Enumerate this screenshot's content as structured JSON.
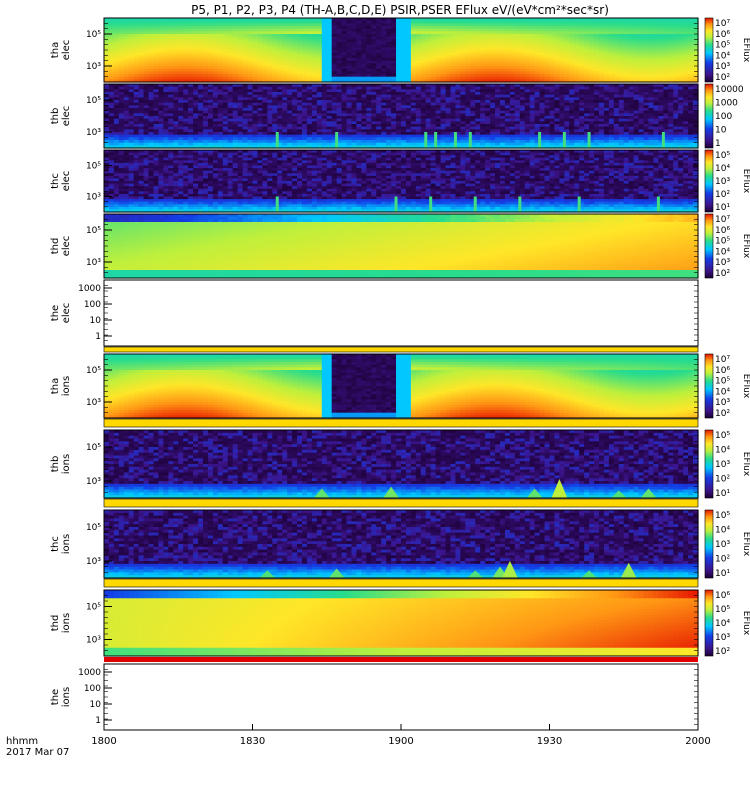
{
  "chart_data": {
    "type": "heatmap",
    "title": "P5, P1, P2, P3, P4 (TH-A,B,C,D,E) PSIR,PSER EFlux eV/(eV*cm²*sec*sr)",
    "xaxis": {
      "ticks": [
        "1800",
        "1830",
        "1900",
        "1930",
        "2000"
      ],
      "label_line1": "hhmm",
      "label_line2": "2017 Mar 07",
      "start_min": 0,
      "end_min": 120
    },
    "panels": [
      {
        "id": "tha-elec",
        "ylabel": [
          "tha",
          "elec"
        ],
        "kind": "spec",
        "pattern": "wave",
        "yticks": [
          "10⁵",
          "10³"
        ],
        "colorbar": {
          "label": "EFlux",
          "ticks": [
            "10⁷",
            "10⁶",
            "10⁵",
            "10⁴",
            "10³",
            "10²"
          ]
        }
      },
      {
        "id": "thb-elec",
        "ylabel": [
          "thb",
          "elec"
        ],
        "kind": "spec",
        "pattern": "noise",
        "yticks": [
          "10⁵",
          "10³"
        ],
        "colorbar": {
          "label": "",
          "ticks": [
            "10000",
            "1000",
            "100",
            "10",
            "1"
          ]
        },
        "spikes_min": [
          35,
          47,
          65,
          67,
          71,
          74,
          88,
          93,
          98,
          113
        ]
      },
      {
        "id": "thc-elec",
        "ylabel": [
          "thc",
          "elec"
        ],
        "kind": "spec",
        "pattern": "noise",
        "yticks": [
          "10⁵",
          "10³"
        ],
        "colorbar": {
          "label": "EFlux",
          "ticks": [
            "10⁵",
            "10⁴",
            "10³",
            "10²",
            "10¹"
          ]
        },
        "spikes_min": [
          35,
          59,
          66,
          75,
          84,
          96,
          112
        ]
      },
      {
        "id": "thd-elec",
        "ylabel": [
          "thd",
          "elec"
        ],
        "kind": "spec",
        "pattern": "ramp",
        "yticks": [
          "10⁵",
          "10³"
        ],
        "colorbar": {
          "label": "EFlux",
          "ticks": [
            "10⁷",
            "10⁶",
            "10⁵",
            "10⁴",
            "10³",
            "10²"
          ]
        }
      },
      {
        "id": "the-elec",
        "ylabel": [
          "the",
          "elec"
        ],
        "kind": "empty",
        "yticks": [
          "1000",
          "100",
          "10",
          "1"
        ]
      },
      {
        "id": "tha-ions",
        "ylabel": [
          "tha",
          "ions"
        ],
        "kind": "spec",
        "pattern": "wave",
        "yticks": [
          "10⁵",
          "10³"
        ],
        "colorbar": {
          "label": "EFlux",
          "ticks": [
            "10⁷",
            "10⁶",
            "10⁵",
            "10⁴",
            "10³",
            "10²"
          ]
        }
      },
      {
        "id": "thb-ions",
        "ylabel": [
          "thb",
          "ions"
        ],
        "kind": "spec",
        "pattern": "noise",
        "yticks": [
          "10⁵",
          "10³"
        ],
        "colorbar": {
          "label": "EFlux",
          "ticks": [
            "10⁵",
            "10⁴",
            "10³",
            "10²",
            "10¹"
          ]
        },
        "bursts_min": [
          [
            44,
            0.5
          ],
          [
            58,
            0.6
          ],
          [
            87,
            0.5
          ],
          [
            92,
            1.0
          ],
          [
            104,
            0.4
          ],
          [
            110,
            0.5
          ]
        ]
      },
      {
        "id": "thc-ions",
        "ylabel": [
          "thc",
          "ions"
        ],
        "kind": "spec",
        "pattern": "noise",
        "yticks": [
          "10⁵",
          "10³"
        ],
        "colorbar": {
          "label": "EFlux",
          "ticks": [
            "10⁵",
            "10⁴",
            "10³",
            "10²",
            "10¹"
          ]
        },
        "bursts_min": [
          [
            33,
            0.4
          ],
          [
            47,
            0.5
          ],
          [
            75,
            0.4
          ],
          [
            80,
            0.6
          ],
          [
            82,
            0.9
          ],
          [
            98,
            0.4
          ],
          [
            106,
            0.8
          ]
        ]
      },
      {
        "id": "thd-ions",
        "ylabel": [
          "thd",
          "ions"
        ],
        "kind": "spec",
        "pattern": "ramp-red",
        "yticks": [
          "10⁵",
          "10³"
        ],
        "colorbar": {
          "label": "EFlux",
          "ticks": [
            "10⁶",
            "10⁵",
            "10⁴",
            "10³",
            "10²"
          ]
        }
      },
      {
        "id": "the-ions",
        "ylabel": [
          "the",
          "ions"
        ],
        "kind": "empty",
        "yticks": [
          "1000",
          "100",
          "10",
          "1"
        ]
      }
    ],
    "colors": {
      "low": "#1c0033",
      "mid": "#00c0ff",
      "high": "#ff2000",
      "band_yellow": "#ffd800",
      "band_red": "#e00000"
    }
  }
}
